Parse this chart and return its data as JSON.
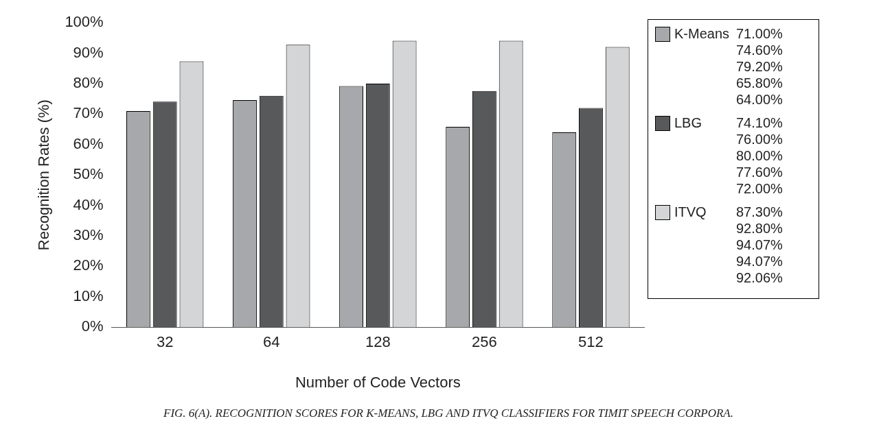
{
  "chart_data": {
    "type": "bar",
    "xlabel": "Number of Code Vectors",
    "ylabel": "Recognition Rates (%)",
    "categories": [
      "32",
      "64",
      "128",
      "256",
      "512"
    ],
    "ylim": [
      0,
      100
    ],
    "yticks": [
      {
        "value": 0,
        "label": "0%"
      },
      {
        "value": 10,
        "label": "10%"
      },
      {
        "value": 20,
        "label": "20%"
      },
      {
        "value": 30,
        "label": "30%"
      },
      {
        "value": 40,
        "label": "40%"
      },
      {
        "value": 50,
        "label": "50%"
      },
      {
        "value": 60,
        "label": "60%"
      },
      {
        "value": 70,
        "label": "70%"
      },
      {
        "value": 80,
        "label": "80%"
      },
      {
        "value": 90,
        "label": "90%"
      },
      {
        "value": 100,
        "label": "100%"
      }
    ],
    "grid": false,
    "legend": "right",
    "series": [
      {
        "name": "K-Means",
        "color": "#a7a8ab",
        "values": [
          71.0,
          74.6,
          79.2,
          65.8,
          64.0
        ]
      },
      {
        "name": "LBG",
        "color": "#58595b",
        "values": [
          74.1,
          76.0,
          80.0,
          77.6,
          72.0
        ]
      },
      {
        "name": "ITVQ",
        "color": "#d4d5d7",
        "values": [
          87.3,
          92.8,
          94.07,
          94.07,
          92.06
        ]
      }
    ],
    "annotations": [
      "71.00%",
      "74.60%",
      "79.20%",
      "65.80%",
      "64.00%",
      "74.10%",
      "76.00%",
      "80.00%",
      "77.60%",
      "72.00%",
      "87.30%",
      "92.80%",
      "94.07%",
      "94.07%",
      "92.06%",
      "FIG. 6(A). RECOGNITION SCORES FOR K-MEANS, LBG AND ITVQ CLASSIFIERS FOR TIMIT SPEECH CORPORA."
    ]
  }
}
